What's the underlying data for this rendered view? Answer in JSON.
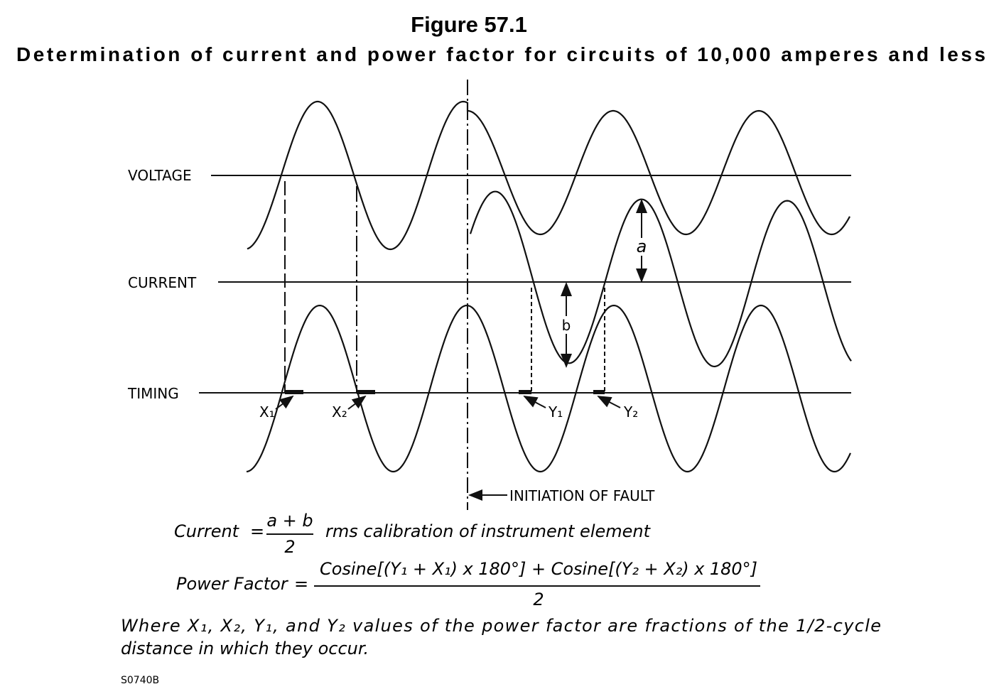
{
  "header": {
    "title": "Figure 57.1",
    "subtitle": "Determination of current and power factor for circuits of 10,000 amperes and less"
  },
  "traces": {
    "voltage": "VOLTAGE",
    "current": "CURRENT",
    "timing": "TIMING"
  },
  "markers": {
    "x1": "X₁",
    "x2": "X₂",
    "y1": "Y₁",
    "y2": "Y₂",
    "a": "a",
    "b": "b",
    "fault": "INITIATION OF FAULT"
  },
  "formulas": {
    "current": {
      "lhs": "Current",
      "eq": "=",
      "numerator": "a + b",
      "denominator": "2",
      "rhs": "rms calibration of instrument element"
    },
    "power_factor": {
      "lhs": "Power Factor",
      "eq": "=",
      "numerator": "Cosine[(Y₁ + X₁) x 180°] + Cosine[(Y₂ + X₂) x 180°]",
      "denominator": "2"
    }
  },
  "note": {
    "lines": [
      "Where X₁, X₂, Y₁, and Y₂ values of the power factor are fractions of the 1/2-cycle",
      "distance in which they occur."
    ]
  },
  "code": "S0740B"
}
